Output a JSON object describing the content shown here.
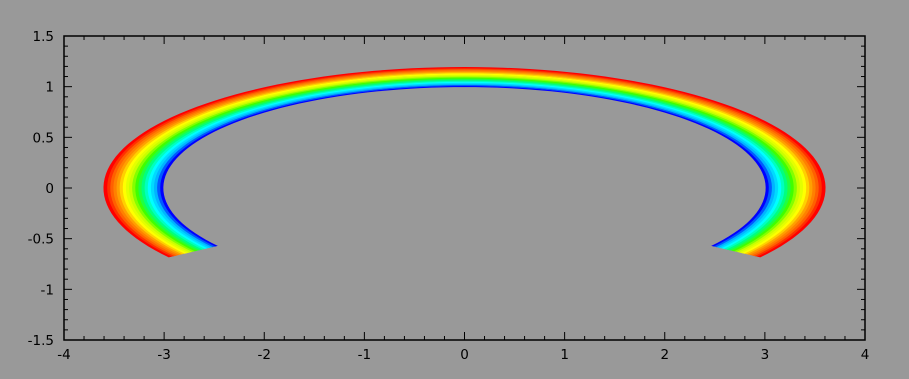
{
  "chart_data": {
    "type": "heatmap",
    "title": "",
    "xlabel": "",
    "ylabel": "",
    "xlim": [
      -4,
      4
    ],
    "ylim": [
      -1.5,
      1.5
    ],
    "x_ticks": [
      -4,
      -3,
      -2,
      -1,
      0,
      1,
      2,
      3,
      4
    ],
    "y_ticks": [
      -1.5,
      -1,
      -0.5,
      0,
      0.5,
      1,
      1.5
    ],
    "x_tick_labels": [
      "-4",
      "-3",
      "-2",
      "-1",
      "0",
      "1",
      "2",
      "3",
      "4"
    ],
    "y_tick_labels": [
      "-1.5",
      "-1",
      "-0.5",
      "0",
      "0.5",
      "1",
      "1.5"
    ],
    "x_minor_step": 0.2,
    "y_minor_step": 0.1,
    "grid": false,
    "legend": "none",
    "shape": {
      "kind": "annular-sector",
      "inner_radius": 0.996,
      "outer_radius": 1.192,
      "center_y": 0,
      "x_scale": 3.02,
      "angle_start_deg": -35,
      "angle_end_deg": 215
    },
    "contour_levels": 19,
    "colormap": [
      "#0000ff",
      "#00b4ff",
      "#00ffff",
      "#00ff80",
      "#40ff00",
      "#c8ff00",
      "#ffff00",
      "#ffa000",
      "#ff6000",
      "#ff0000"
    ],
    "colors": {
      "background": "#999999",
      "frame": "#000000"
    }
  }
}
